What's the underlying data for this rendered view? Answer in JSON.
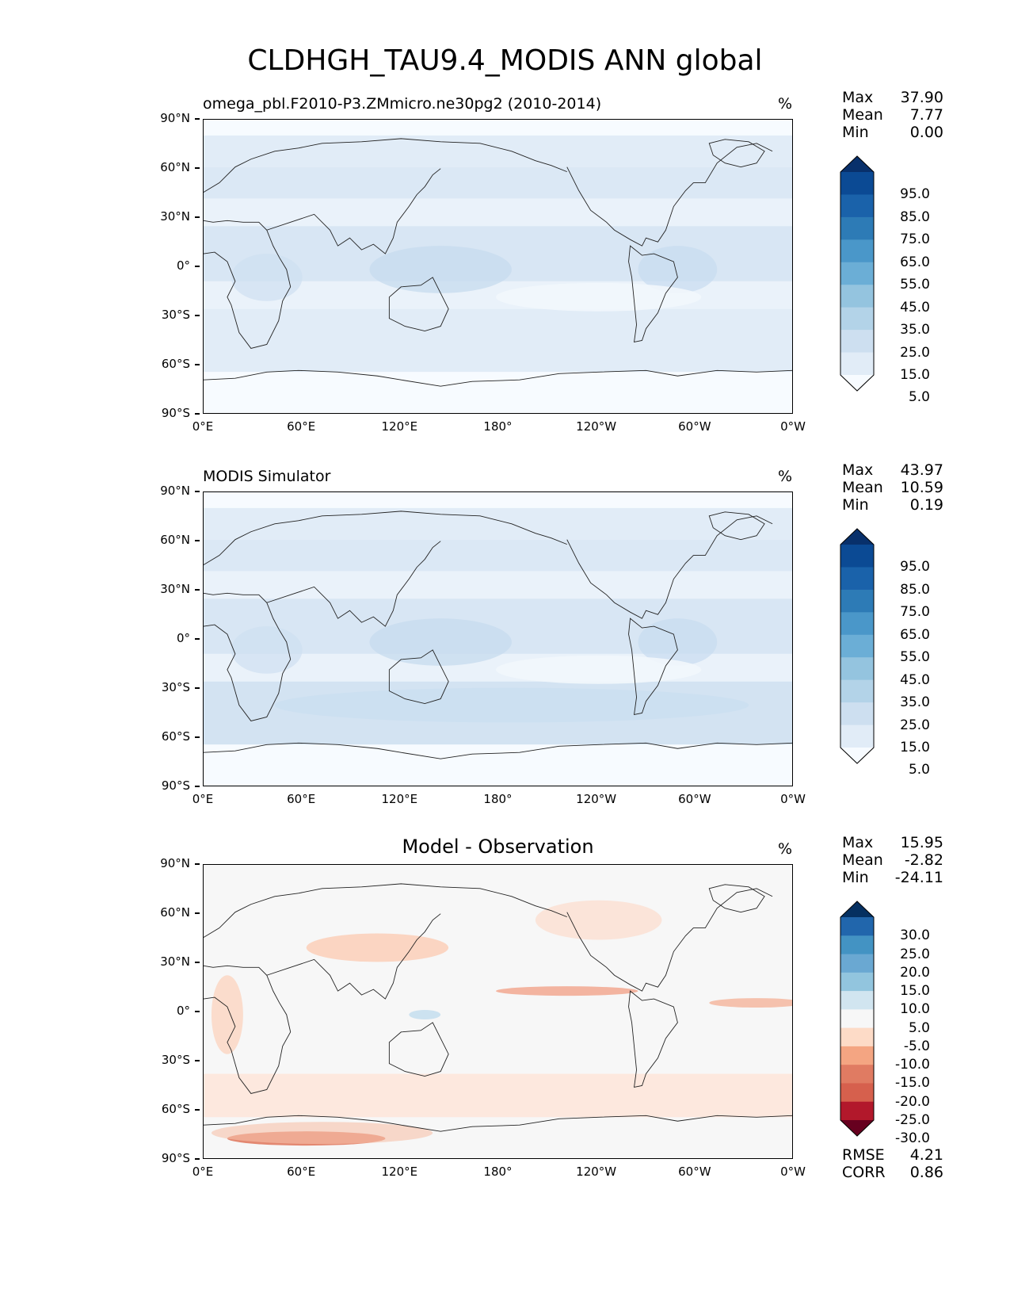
{
  "figure": {
    "title": "CLDHGH_TAU9.4_MODIS ANN global"
  },
  "axes": {
    "lat_ticks": [
      "90°N",
      "60°N",
      "30°N",
      "0°",
      "30°S",
      "60°S",
      "90°S"
    ],
    "lon_ticks": [
      "0°E",
      "60°E",
      "120°E",
      "180°",
      "120°W",
      "60°W",
      "0°W"
    ]
  },
  "panels": [
    {
      "label": "omega_pbl.F2010-P3.ZMmicro.ne30pg2 (2010-2014)",
      "units": "%",
      "stats": [
        {
          "name": "Max",
          "value": "37.90"
        },
        {
          "name": "Mean",
          "value": "7.77"
        },
        {
          "name": "Min",
          "value": "0.00"
        }
      ],
      "colorbar": {
        "labels": [
          "95.0",
          "85.0",
          "75.0",
          "65.0",
          "55.0",
          "45.0",
          "35.0",
          "25.0",
          "15.0",
          "5.0"
        ],
        "colors": [
          "#08306b",
          "#0b4a94",
          "#1a62aa",
          "#2d7bb6",
          "#4a97c9",
          "#6baed6",
          "#94c4df",
          "#b3d3e8",
          "#cddff0",
          "#e1ecf7",
          "#f7fbff"
        ]
      }
    },
    {
      "label": "MODIS Simulator",
      "units": "%",
      "stats": [
        {
          "name": "Max",
          "value": "43.97"
        },
        {
          "name": "Mean",
          "value": "10.59"
        },
        {
          "name": "Min",
          "value": "0.19"
        }
      ],
      "colorbar": {
        "labels": [
          "95.0",
          "85.0",
          "75.0",
          "65.0",
          "55.0",
          "45.0",
          "35.0",
          "25.0",
          "15.0",
          "5.0"
        ],
        "colors": [
          "#08306b",
          "#0b4a94",
          "#1a62aa",
          "#2d7bb6",
          "#4a97c9",
          "#6baed6",
          "#94c4df",
          "#b3d3e8",
          "#cddff0",
          "#e1ecf7",
          "#f7fbff"
        ]
      }
    },
    {
      "label": "Model - Observation",
      "units": "%",
      "stats": [
        {
          "name": "Max",
          "value": "15.95"
        },
        {
          "name": "Mean",
          "value": "-2.82"
        },
        {
          "name": "Min",
          "value": "-24.11"
        }
      ],
      "colorbar": {
        "labels": [
          "30.0",
          "25.0",
          "20.0",
          "15.0",
          "10.0",
          "5.0",
          "-5.0",
          "-10.0",
          "-15.0",
          "-20.0",
          "-25.0",
          "-30.0"
        ],
        "colors": [
          "#053061",
          "#2166ac",
          "#4393c3",
          "#6aa8d2",
          "#92c5de",
          "#d1e5f0",
          "#f7f7f7",
          "#fddbc7",
          "#f4a582",
          "#e07b62",
          "#d6604d",
          "#b2182b",
          "#67001f"
        ]
      },
      "metrics": [
        {
          "name": "RMSE",
          "value": "4.21"
        },
        {
          "name": "CORR",
          "value": "0.86"
        }
      ]
    }
  ]
}
